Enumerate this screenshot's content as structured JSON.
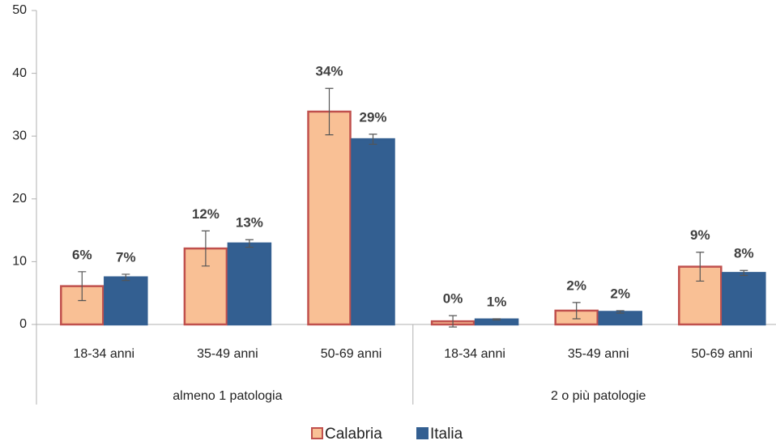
{
  "chart_data": {
    "type": "bar",
    "categories": [
      "18-34 anni",
      "35-49 anni",
      "50-69 anni",
      "18-34 anni",
      "35-49 anni",
      "50-69 anni"
    ],
    "groups": [
      "almeno 1 patologia",
      "2 o più patologie"
    ],
    "series": [
      {
        "name": "Calabria",
        "color": "#f9c095",
        "border": "#c0504d",
        "values": [
          6.1,
          12.1,
          33.9,
          0.5,
          2.2,
          9.2
        ],
        "errors": [
          2.3,
          2.8,
          3.7,
          0.9,
          1.3,
          2.3
        ],
        "value_labels": [
          "6%",
          "12%",
          "34%",
          "0%",
          "2%",
          "9%"
        ]
      },
      {
        "name": "Italia",
        "color": "#335f91",
        "border": "#335f91",
        "values": [
          7.5,
          12.9,
          29.5,
          0.8,
          2.0,
          8.2
        ],
        "errors": [
          0.5,
          0.6,
          0.8,
          0.1,
          0.2,
          0.4
        ],
        "value_labels": [
          "7%",
          "13%",
          "29%",
          "1%",
          "2%",
          "8%"
        ]
      }
    ],
    "ylim": [
      0,
      50
    ],
    "yticks": [
      0,
      10,
      20,
      30,
      40,
      50
    ],
    "grid": false,
    "legend": "bottom"
  }
}
